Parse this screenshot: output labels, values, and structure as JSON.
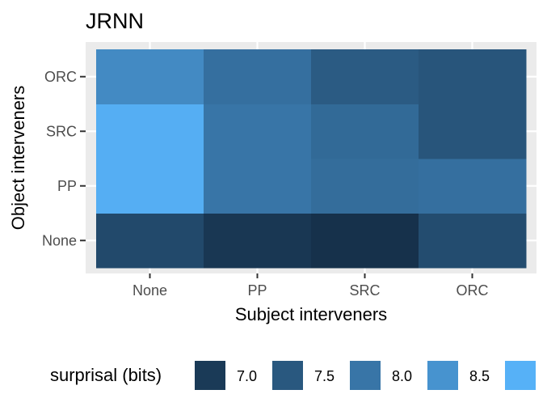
{
  "chart_data": {
    "type": "heatmap",
    "title": "JRNN",
    "xlabel": "Subject interveners",
    "ylabel": "Object interveners",
    "x_categories": [
      "None",
      "PP",
      "SRC",
      "ORC"
    ],
    "y_categories": [
      "None",
      "PP",
      "SRC",
      "ORC"
    ],
    "values": [
      [
        7.25,
        6.95,
        6.85,
        7.3
      ],
      [
        8.95,
        8.0,
        7.85,
        7.9
      ],
      [
        8.95,
        8.0,
        7.8,
        7.45
      ],
      [
        8.35,
        7.9,
        7.55,
        7.45
      ]
    ],
    "legend": {
      "title": "surprisal (bits)",
      "labels": [
        "7.0",
        "7.5",
        "8.0",
        "8.5"
      ],
      "position": "bottom",
      "range": [
        6.75,
        9.0
      ]
    },
    "colors": {
      "low": "#132B43",
      "high": "#56B1F7",
      "panel": "#EBEBEB",
      "grid": "#FFFFFF"
    },
    "grid": true
  }
}
